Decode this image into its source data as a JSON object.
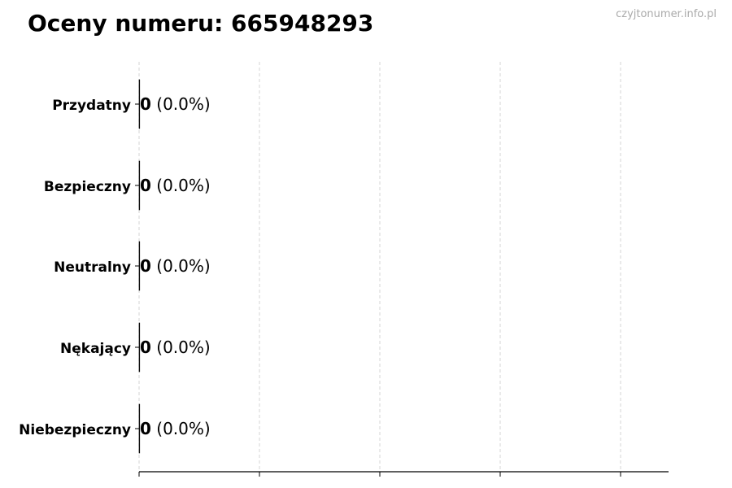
{
  "title": "Oceny numeru: 665948293",
  "watermark": "czyjtonumer.info.pl",
  "chart_data": {
    "type": "bar",
    "orientation": "horizontal",
    "title": "Oceny numeru: 665948293",
    "categories": [
      "Przydatny",
      "Bezpieczny",
      "Neutralny",
      "Nękający",
      "Niebezpieczny"
    ],
    "values": [
      0,
      0,
      0,
      0,
      0
    ],
    "data_labels": [
      {
        "count": "0",
        "percent": "(0.0%)"
      },
      {
        "count": "0",
        "percent": "(0.0%)"
      },
      {
        "count": "0",
        "percent": "(0.0%)"
      },
      {
        "count": "0",
        "percent": "(0.0%)"
      },
      {
        "count": "0",
        "percent": "(0.0%)"
      }
    ],
    "xlabel": "",
    "ylabel": "",
    "x_tick_labels_shown": false,
    "grid": "vertical dashed",
    "colors": {
      "grid": "#cccccc",
      "axis": "#000000",
      "bar_edge": "#000000"
    }
  }
}
